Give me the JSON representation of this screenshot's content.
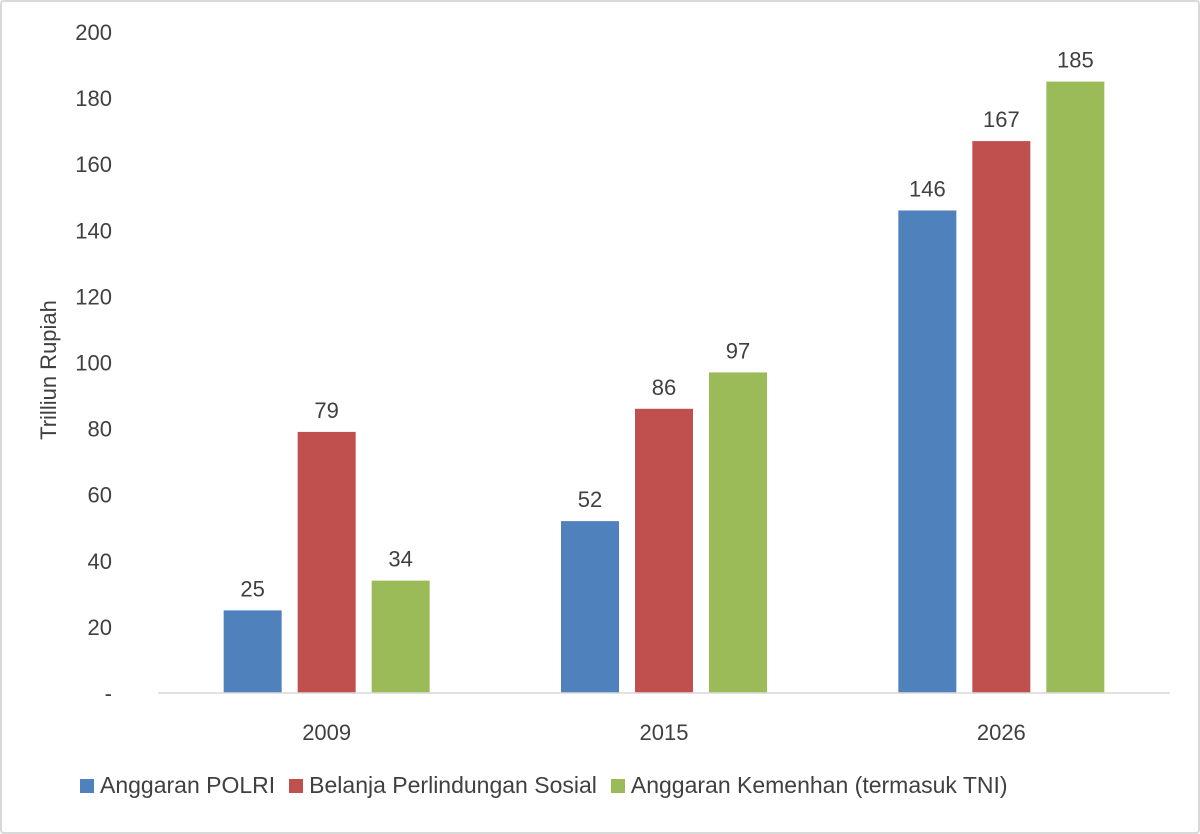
{
  "chart_data": {
    "type": "bar",
    "ylabel": "Trilliun Rupiah",
    "xlabel": "",
    "ylim": [
      0,
      200
    ],
    "yticks": [
      {
        "value": 0,
        "label": "-"
      },
      {
        "value": 20,
        "label": "20"
      },
      {
        "value": 40,
        "label": "40"
      },
      {
        "value": 60,
        "label": "60"
      },
      {
        "value": 80,
        "label": "80"
      },
      {
        "value": 100,
        "label": "100"
      },
      {
        "value": 120,
        "label": "120"
      },
      {
        "value": 140,
        "label": "140"
      },
      {
        "value": 160,
        "label": "160"
      },
      {
        "value": 180,
        "label": "180"
      },
      {
        "value": 200,
        "label": "200"
      }
    ],
    "categories": [
      "2009",
      "2015",
      "2026"
    ],
    "series": [
      {
        "name": "Anggaran POLRI",
        "color": "#4f81bd",
        "values": [
          25,
          52,
          146
        ]
      },
      {
        "name": "Belanja Perlindungan Sosial",
        "color": "#c0504d",
        "values": [
          79,
          86,
          167
        ]
      },
      {
        "name": "Anggaran Kemenhan (termasuk TNI)",
        "color": "#9bbb59",
        "values": [
          34,
          97,
          185
        ]
      }
    ],
    "grid": false,
    "legend_position": "bottom"
  }
}
